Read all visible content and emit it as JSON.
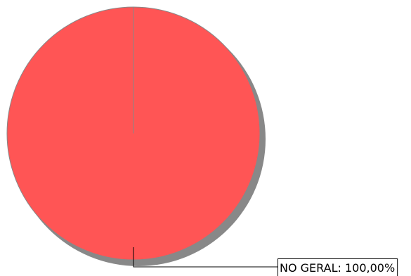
{
  "chart_data": {
    "type": "pie",
    "title": "",
    "legend": "none",
    "slices": [
      {
        "name": "NO GERAL",
        "value": 100,
        "label": "NO GERAL: 100,00%",
        "color": "#ff5555"
      }
    ],
    "colors": {
      "shadow": "#888888",
      "outline": "#888888",
      "leader_line": "#000000",
      "label_border": "#000000",
      "label_background": "#ffffff"
    }
  }
}
